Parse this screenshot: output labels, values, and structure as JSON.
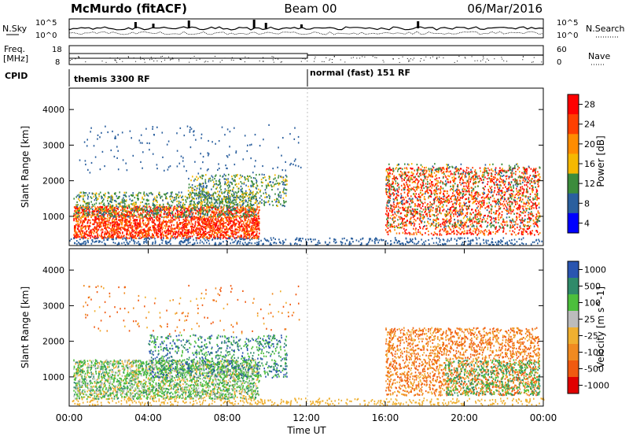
{
  "header": {
    "station": "McMurdo (fitACF)",
    "beam": "Beam 00",
    "date": "06/Mar/2016"
  },
  "summary_panel": {
    "nsky_label": "N.Sky",
    "nsearch_label": "N.Search",
    "freq_label_1": "Freq.",
    "freq_label_2": "[MHz]",
    "nave_label": "Nave",
    "cpid_label": "CPID",
    "left_axis_top": "10^5",
    "left_axis_bottom": "10^0",
    "right_axis_top": "10^5",
    "right_axis_bottom": "10^0",
    "freq_ticks": [
      "18",
      "8"
    ],
    "nave_ticks": [
      "60",
      "0"
    ],
    "cpid_segments": [
      {
        "label": "themis 3300 RF",
        "start_hour": 0,
        "end_hour": 12
      },
      {
        "label": "normal (fast) 151 RF",
        "start_hour": 12,
        "end_hour": 24
      }
    ]
  },
  "chart_data": [
    {
      "type": "heatmap",
      "name": "power",
      "ylabel": "Slant Range [km]",
      "xlabel": "",
      "xlim": [
        0,
        24
      ],
      "ylim": [
        180,
        4600
      ],
      "yticks": [
        "1000",
        "2000",
        "3000",
        "4000"
      ],
      "colorbar": {
        "label": "Power [dB]",
        "ticks": [
          "28",
          "24",
          "20",
          "16",
          "12",
          "8",
          "4"
        ],
        "colors": [
          "#ff0000",
          "#ff4000",
          "#ff8c00",
          "#f5b800",
          "#3c8c3c",
          "#2a5f9e",
          "#0000ff"
        ]
      }
    },
    {
      "type": "heatmap",
      "name": "velocity",
      "ylabel": "Slant Range [km]",
      "xlabel": "Time UT",
      "xlim": [
        0,
        24
      ],
      "ylim": [
        180,
        4600
      ],
      "yticks": [
        "1000",
        "2000",
        "3000",
        "4000"
      ],
      "xticks": [
        "00:00",
        "04:00",
        "08:00",
        "12:00",
        "16:00",
        "20:00",
        "00:00"
      ],
      "colorbar": {
        "label": "Velocity [m s^-1]",
        "ticks": [
          "1000",
          "500",
          "100",
          "25",
          "-25",
          "-100",
          "-500",
          "-1000"
        ],
        "colors": [
          "#2a55b0",
          "#2f8a6a",
          "#4cbf3c",
          "#bcbcbc",
          "#f0b030",
          "#f08a20",
          "#f05a10",
          "#e00000"
        ]
      }
    }
  ]
}
